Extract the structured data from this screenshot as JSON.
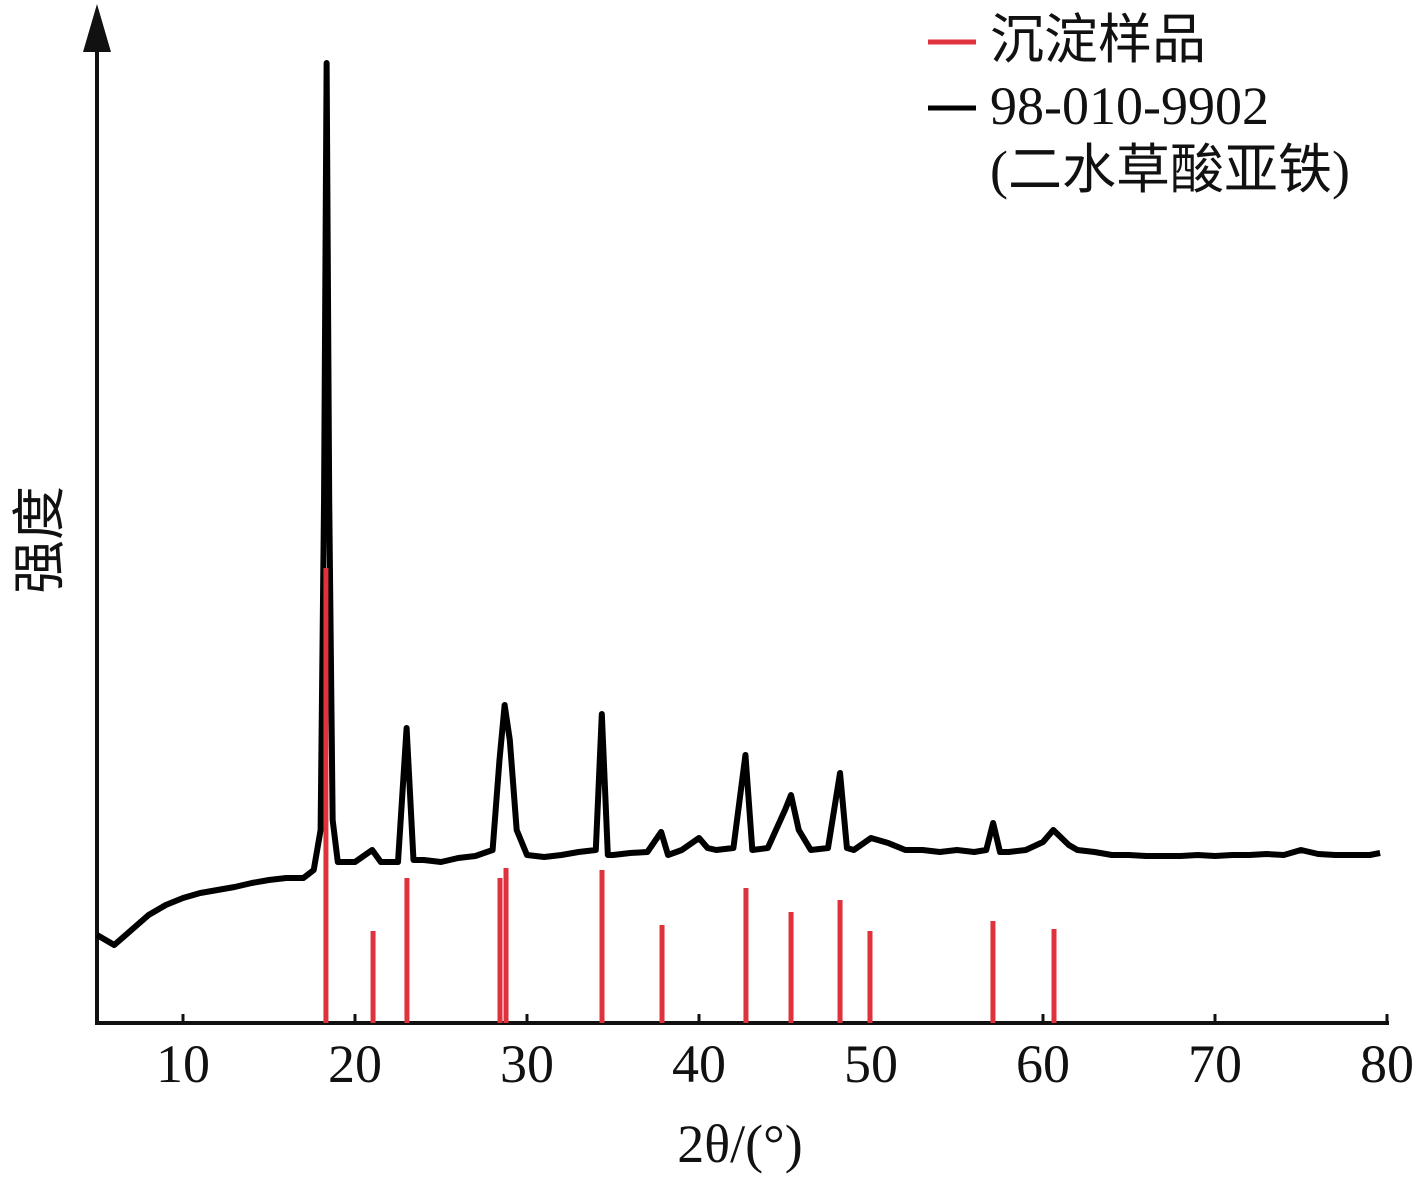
{
  "chart_data": {
    "type": "xrd",
    "x_label": "2θ/(°)",
    "y_label": "强度",
    "xlim": [
      5,
      80
    ],
    "ylim": [
      0,
      100
    ],
    "xticks": [
      10,
      20,
      30,
      40,
      50,
      60,
      70,
      80
    ],
    "series": [
      {
        "name": "沉淀样品",
        "color": "#e0323c",
        "style": "stick",
        "x": [
          18.31,
          21.05,
          23.02,
          28.43,
          28.78,
          34.36,
          37.85,
          42.73,
          45.35,
          48.2,
          49.94,
          57.09,
          60.64
        ],
        "values": [
          45.5,
          9.2,
          14.5,
          14.5,
          15.5,
          15.3,
          9.8,
          13.5,
          11.1,
          12.3,
          9.2,
          10.2,
          9.4
        ]
      },
      {
        "name": "98-010-9902\n(二水草酸亚铁)",
        "color": "#000000",
        "style": "line",
        "x": [
          5,
          6,
          7,
          8,
          9,
          10,
          11,
          12,
          13,
          14,
          15,
          16,
          17,
          17.6,
          18.0,
          18.2,
          18.35,
          18.5,
          18.7,
          19,
          20,
          21,
          21.5,
          22.5,
          23.0,
          23.4,
          24,
          25,
          26,
          27,
          28,
          28.4,
          28.7,
          29.0,
          29.4,
          30,
          31,
          32,
          33,
          34.0,
          34.35,
          34.7,
          35,
          36,
          37,
          37.8,
          38.2,
          39,
          40,
          40.5,
          41,
          42,
          42.7,
          43.1,
          44,
          45,
          45.35,
          45.8,
          46.5,
          47.5,
          48.2,
          48.6,
          49,
          50,
          51,
          52,
          53,
          54,
          55,
          56,
          56.7,
          57.1,
          57.5,
          58,
          59,
          60,
          60.6,
          61.5,
          62,
          63,
          64,
          65,
          66,
          67,
          68,
          69,
          70,
          71,
          72,
          73,
          74,
          75,
          76,
          77,
          78,
          79,
          79.6
        ],
        "values": [
          8.8,
          7.8,
          9.3,
          10.8,
          11.8,
          12.5,
          13.0,
          13.3,
          13.6,
          14.0,
          14.3,
          14.5,
          14.5,
          15.3,
          19.3,
          52.3,
          96,
          52.3,
          20.3,
          16.1,
          16.1,
          17.3,
          16.1,
          16.1,
          29.5,
          16.3,
          16.3,
          16.1,
          16.5,
          16.7,
          17.3,
          26.3,
          31.8,
          28.3,
          19.3,
          16.8,
          16.6,
          16.8,
          17.1,
          17.3,
          30.9,
          16.8,
          16.8,
          17.0,
          17.1,
          19.1,
          16.8,
          17.3,
          18.5,
          17.5,
          17.3,
          17.5,
          26.8,
          17.3,
          17.5,
          21.3,
          22.8,
          19.3,
          17.3,
          17.5,
          25.0,
          17.5,
          17.3,
          18.5,
          18.0,
          17.3,
          17.3,
          17.1,
          17.3,
          17.1,
          17.3,
          20.0,
          17.1,
          17.1,
          17.3,
          18.1,
          19.3,
          17.8,
          17.3,
          17.1,
          16.8,
          16.8,
          16.7,
          16.7,
          16.7,
          16.8,
          16.7,
          16.8,
          16.8,
          16.9,
          16.8,
          17.3,
          16.9,
          16.8,
          16.8,
          16.8,
          17.0
        ]
      }
    ]
  }
}
